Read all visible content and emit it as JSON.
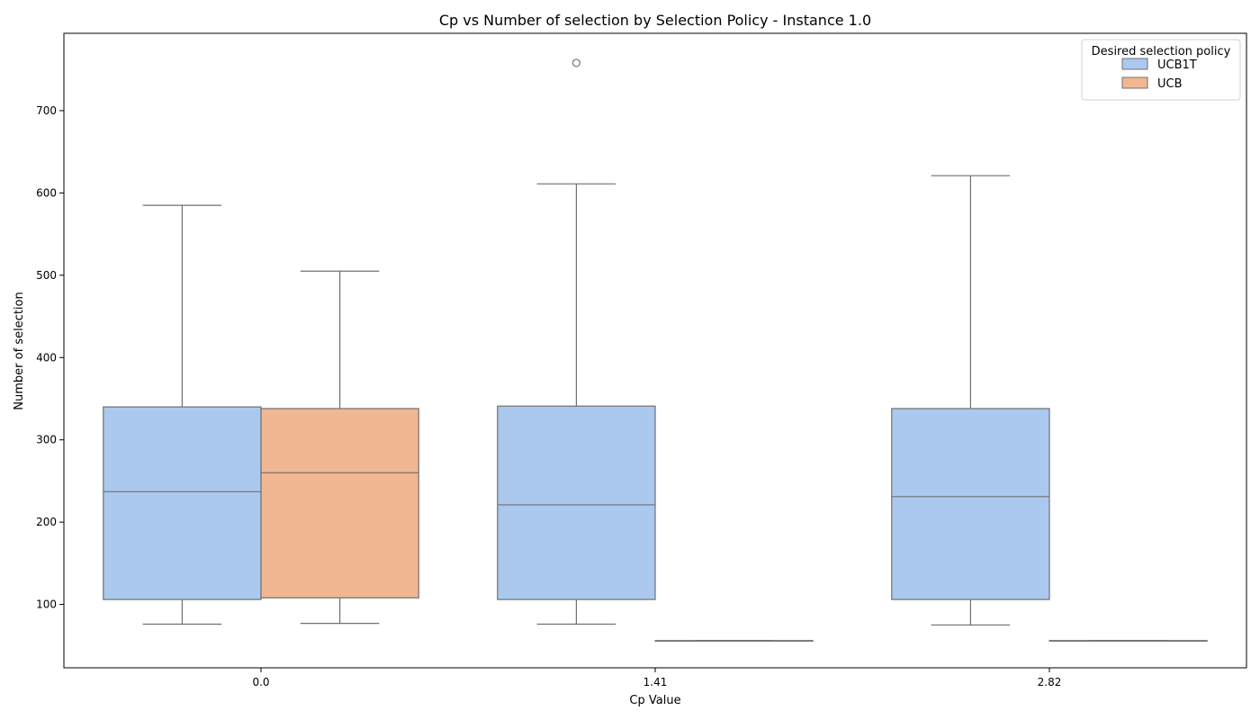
{
  "chart_data": {
    "type": "box",
    "title": "Cp vs Number of selection by Selection Policy - Instance 1.0",
    "xlabel": "Cp Value",
    "ylabel": "Number of selection",
    "categories": [
      "0.0",
      "1.41",
      "2.82"
    ],
    "yticks": [
      100,
      200,
      300,
      400,
      500,
      600,
      700
    ],
    "ylim": [
      23,
      794
    ],
    "grid": false,
    "legend": {
      "title": "Desired selection policy",
      "position": "top-right"
    },
    "series": [
      {
        "name": "UCB1T",
        "color": "#abc9ee",
        "boxes": [
          {
            "category": "0.0",
            "whislo": 76,
            "q1": 106,
            "median": 237,
            "q3": 340,
            "whishi": 585,
            "fliers": []
          },
          {
            "category": "1.41",
            "whislo": 76,
            "q1": 106,
            "median": 221,
            "q3": 341,
            "whishi": 611,
            "fliers": [
              758
            ]
          },
          {
            "category": "2.82",
            "whislo": 75,
            "q1": 106,
            "median": 231,
            "q3": 338,
            "whishi": 621,
            "fliers": []
          }
        ]
      },
      {
        "name": "UCB",
        "color": "#f0b792",
        "boxes": [
          {
            "category": "0.0",
            "whislo": 77,
            "q1": 108,
            "median": 260,
            "q3": 338,
            "whishi": 505,
            "fliers": []
          },
          {
            "category": "1.41",
            "whislo": 56,
            "q1": 56,
            "median": 56,
            "q3": 56,
            "whishi": 56,
            "fliers": []
          },
          {
            "category": "2.82",
            "whislo": 56,
            "q1": 56,
            "median": 56,
            "q3": 56,
            "whishi": 56,
            "fliers": []
          }
        ]
      }
    ]
  }
}
